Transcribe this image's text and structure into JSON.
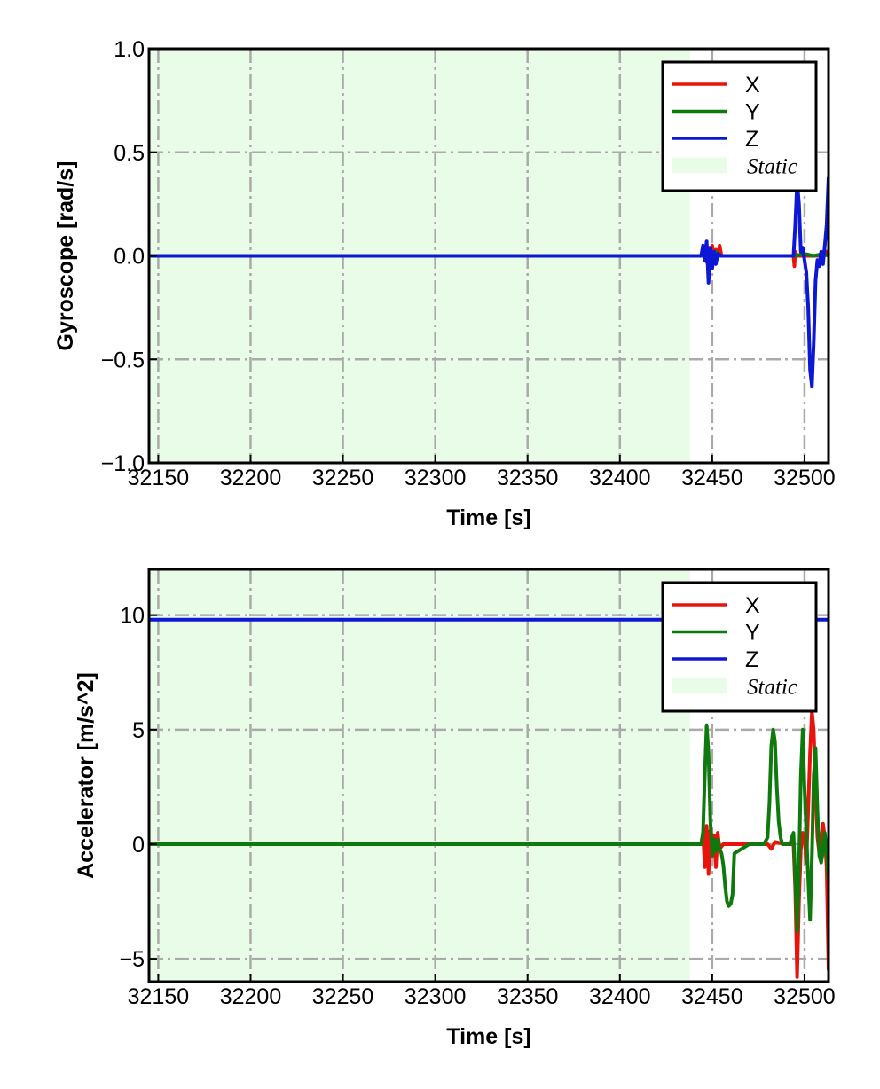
{
  "colors": {
    "x": "#e8140c",
    "y": "#0e7a0e",
    "z": "#0c18d6",
    "static_fill": "#e8fce8",
    "grid": "#aaaaaa"
  },
  "chart_data": [
    {
      "type": "line",
      "xlabel": "Time [s]",
      "ylabel": "Gyroscope [rad/s]",
      "xlim": [
        32145,
        32513
      ],
      "ylim": [
        -1.0,
        1.0
      ],
      "xticks": [
        32150,
        32200,
        32250,
        32300,
        32350,
        32400,
        32450,
        32500
      ],
      "xtick_labels": [
        "32150",
        "32200",
        "32250",
        "32300",
        "32350",
        "32400",
        "32450",
        "32500"
      ],
      "yticks": [
        -1.0,
        -0.5,
        0.0,
        0.5,
        1.0
      ],
      "ytick_labels": [
        "−1.0",
        "−0.5",
        "0.0",
        "0.5",
        "1.0"
      ],
      "grid": true,
      "legend_position": "top-right",
      "legend": [
        "X",
        "Y",
        "Z",
        "Static"
      ],
      "static_region": [
        32145,
        32438
      ],
      "series": [
        {
          "name": "X",
          "color_key": "x",
          "x": [
            32145,
            32444,
            32446,
            32447,
            32448,
            32449,
            32450,
            32451,
            32452,
            32453,
            32454,
            32455,
            32494,
            32494.5,
            32495,
            32496,
            32505,
            32510,
            32512,
            32513
          ],
          "y": [
            0,
            0,
            0.03,
            -0.03,
            0.04,
            -0.02,
            0.05,
            -0.03,
            0.03,
            -0.01,
            0.05,
            0,
            0,
            -0.05,
            0.02,
            0,
            0,
            0,
            0.02,
            0
          ]
        },
        {
          "name": "Y",
          "color_key": "y",
          "x": [
            32145,
            32446,
            32448,
            32450,
            32452,
            32454,
            32495,
            32500,
            32505,
            32510,
            32513
          ],
          "y": [
            0,
            0,
            0.02,
            -0.02,
            0.02,
            0,
            0,
            0.01,
            0,
            0.01,
            0
          ]
        },
        {
          "name": "Z",
          "color_key": "z",
          "x": [
            32145,
            32444,
            32445,
            32446,
            32447,
            32448,
            32449,
            32450,
            32451,
            32452,
            32453,
            32455,
            32494,
            32495,
            32496,
            32497,
            32498,
            32499,
            32500,
            32501,
            32502,
            32503,
            32504,
            32505,
            32506,
            32507,
            32508,
            32509,
            32510,
            32511,
            32512,
            32513
          ],
          "y": [
            0,
            0,
            0.05,
            -0.02,
            0.07,
            -0.13,
            0.04,
            -0.06,
            0.02,
            -0.04,
            0.01,
            0,
            0,
            0.15,
            0.36,
            0.25,
            0.02,
            0.04,
            -0.02,
            -0.08,
            -0.25,
            -0.55,
            -0.63,
            -0.42,
            -0.12,
            -0.02,
            -0.05,
            0.02,
            -0.04,
            0.05,
            0.15,
            0.38
          ]
        }
      ]
    },
    {
      "type": "line",
      "xlabel": "Time [s]",
      "ylabel": "Accelerator [m/s^2]",
      "xlim": [
        32145,
        32513
      ],
      "ylim": [
        -6.0,
        12.0
      ],
      "xticks": [
        32150,
        32200,
        32250,
        32300,
        32350,
        32400,
        32450,
        32500
      ],
      "xtick_labels": [
        "32150",
        "32200",
        "32250",
        "32300",
        "32350",
        "32400",
        "32450",
        "32500"
      ],
      "yticks": [
        -5,
        0,
        5,
        10
      ],
      "ytick_labels": [
        "−5",
        "0",
        "5",
        "10"
      ],
      "grid": true,
      "legend_position": "top-right",
      "legend": [
        "X",
        "Y",
        "Z",
        "Static"
      ],
      "static_region": [
        32145,
        32438
      ],
      "series": [
        {
          "name": "X",
          "color_key": "x",
          "x": [
            32145,
            32444,
            32445,
            32446,
            32447,
            32448,
            32449,
            32450,
            32451,
            32452,
            32453,
            32454,
            32456,
            32480,
            32482,
            32484,
            32490,
            32494,
            32495,
            32496,
            32497,
            32498,
            32499,
            32500,
            32501,
            32502,
            32503,
            32504,
            32505,
            32506,
            32507,
            32508,
            32509,
            32510,
            32511,
            32512,
            32513
          ],
          "y": [
            0,
            0,
            0.5,
            -1.0,
            0.8,
            -1.3,
            0.6,
            -0.5,
            0.4,
            -1.0,
            0.5,
            -0.2,
            0,
            0,
            -0.2,
            0.1,
            0,
            0,
            -2.0,
            -5.8,
            -2.5,
            -0.2,
            0.5,
            0.3,
            -0.8,
            1.5,
            4.0,
            5.8,
            5.0,
            2.5,
            0.3,
            -0.4,
            0.2,
            0.9,
            0.3,
            -1.0,
            -5.5
          ]
        },
        {
          "name": "Y",
          "color_key": "y",
          "x": [
            32145,
            32444,
            32445,
            32446,
            32447,
            32448,
            32449,
            32450,
            32451,
            32452,
            32453,
            32454,
            32455,
            32456,
            32457,
            32458,
            32459,
            32460,
            32461,
            32462,
            32470,
            32478,
            32480,
            32481,
            32482,
            32483,
            32484,
            32485,
            32486,
            32487,
            32488,
            32489,
            32490,
            32492,
            32494,
            32495,
            32496,
            32497,
            32498,
            32499,
            32500,
            32501,
            32502,
            32503,
            32504,
            32505,
            32506,
            32507,
            32508,
            32509,
            32510,
            32511,
            32512,
            32513
          ],
          "y": [
            0,
            0,
            0.5,
            3.0,
            5.2,
            4.0,
            1.0,
            -0.5,
            0.2,
            -0.3,
            0.2,
            -0.2,
            -0.4,
            -0.9,
            -1.8,
            -2.5,
            -2.7,
            -2.6,
            -2.2,
            -0.4,
            0,
            0,
            0.3,
            1.8,
            4.3,
            5.0,
            4.5,
            2.5,
            1.0,
            0.3,
            0,
            0,
            0,
            0,
            0.5,
            -1.5,
            -3.8,
            -1.0,
            3.0,
            5.0,
            2.5,
            0.5,
            -1.5,
            -3.3,
            -0.5,
            3.0,
            4.2,
            1.5,
            -0.5,
            -0.8,
            -0.3,
            0.5,
            -0.4,
            -1.5
          ]
        },
        {
          "name": "Z",
          "color_key": "z",
          "x": [
            32145,
            32513
          ],
          "y": [
            9.8,
            9.8
          ]
        }
      ]
    }
  ]
}
